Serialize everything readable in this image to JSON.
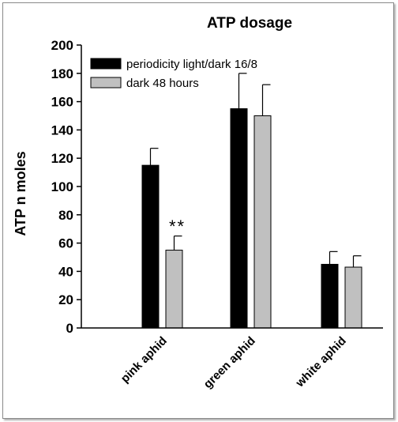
{
  "chart_data": {
    "type": "bar",
    "title": "ATP dosage",
    "xlabel": "",
    "ylabel": "ATP n moles",
    "ylim": [
      0,
      200
    ],
    "yticks": [
      "0",
      "20",
      "40",
      "60",
      "80",
      "100",
      "120",
      "140",
      "160",
      "180",
      "200"
    ],
    "categories": [
      "pink aphid",
      "green aphid",
      "white aphid"
    ],
    "series": [
      {
        "name": "periodicity light/dark 16/8",
        "values": [
          115,
          155,
          45
        ],
        "errors": [
          12,
          25,
          9
        ],
        "color": "#000000"
      },
      {
        "name": "dark 48 hours",
        "values": [
          55,
          150,
          43
        ],
        "errors": [
          10,
          22,
          8
        ],
        "color": "#c0c0c0"
      }
    ],
    "annotations": [
      {
        "text": "**",
        "category": "pink aphid",
        "series": "dark 48 hours",
        "y": 72
      }
    ],
    "legend_position": "top-left",
    "grid": false
  }
}
